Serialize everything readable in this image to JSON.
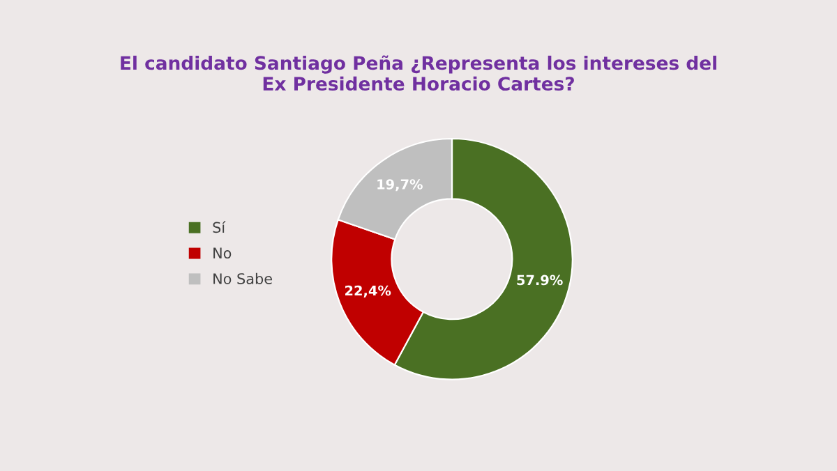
{
  "chart_data": {
    "type": "donut",
    "title": "El candidato Santiago Peña ¿Representa los intereses del\nEx Presidente Horacio Cartes?",
    "categories": [
      "Sí",
      "No",
      "No Sabe"
    ],
    "values": [
      57.9,
      22.4,
      19.7
    ],
    "value_labels": [
      "57.9%",
      "22,4%",
      "19,7%"
    ],
    "colors": [
      "#4a7023",
      "#c00000",
      "#bfbfbf"
    ],
    "legend": "left"
  }
}
